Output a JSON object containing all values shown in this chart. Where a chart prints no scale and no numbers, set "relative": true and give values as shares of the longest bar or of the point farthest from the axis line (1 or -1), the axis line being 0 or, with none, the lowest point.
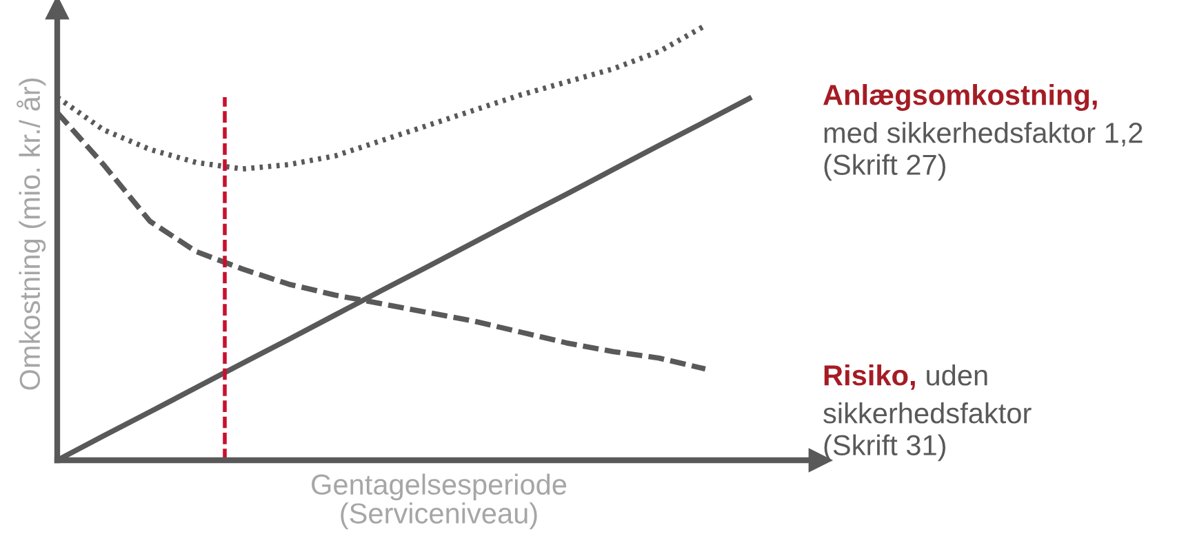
{
  "chart_data": {
    "type": "line",
    "relative": true,
    "ylabel": "Omkostning (mio. kr./ år)",
    "xlabel": "Gentagelsesperiode\n(Serviceniveau)",
    "categories": [
      null,
      null,
      null,
      null,
      null,
      null,
      null,
      null,
      null,
      null,
      null,
      null,
      null,
      null,
      null,
      null
    ],
    "series": [
      {
        "name": "Anlægsomkostning,",
        "color": "#595959",
        "line_style": "solid",
        "values": [
          0,
          0.056,
          0.111,
          0.167,
          0.223,
          0.278,
          0.334,
          0.39,
          0.445,
          0.501,
          0.557,
          0.612,
          0.668,
          0.724,
          0.779,
          0.835
        ]
      },
      {
        "name": "Risiko,",
        "color": "#595959",
        "line_style": "dashed",
        "values": [
          0.8,
          0.68,
          0.55,
          0.48,
          0.44,
          0.405,
          0.38,
          0.36,
          0.34,
          0.32,
          0.295,
          0.27,
          0.25,
          0.235,
          0.21,
          null
        ]
      },
      {
        "color": "#595959",
        "line_style": "dotted",
        "values": [
          0.835,
          0.76,
          0.715,
          0.685,
          0.67,
          0.68,
          0.7,
          0.735,
          0.77,
          0.805,
          0.84,
          0.87,
          0.9,
          0.94,
          1.0,
          null
        ]
      }
    ],
    "annotations": [
      "med sikkerhedsfaktor 1,2\n(Skrift 27)",
      "uden\nsikkerhedsfaktor\n(Skrift 31)"
    ],
    "legend": false
  }
}
